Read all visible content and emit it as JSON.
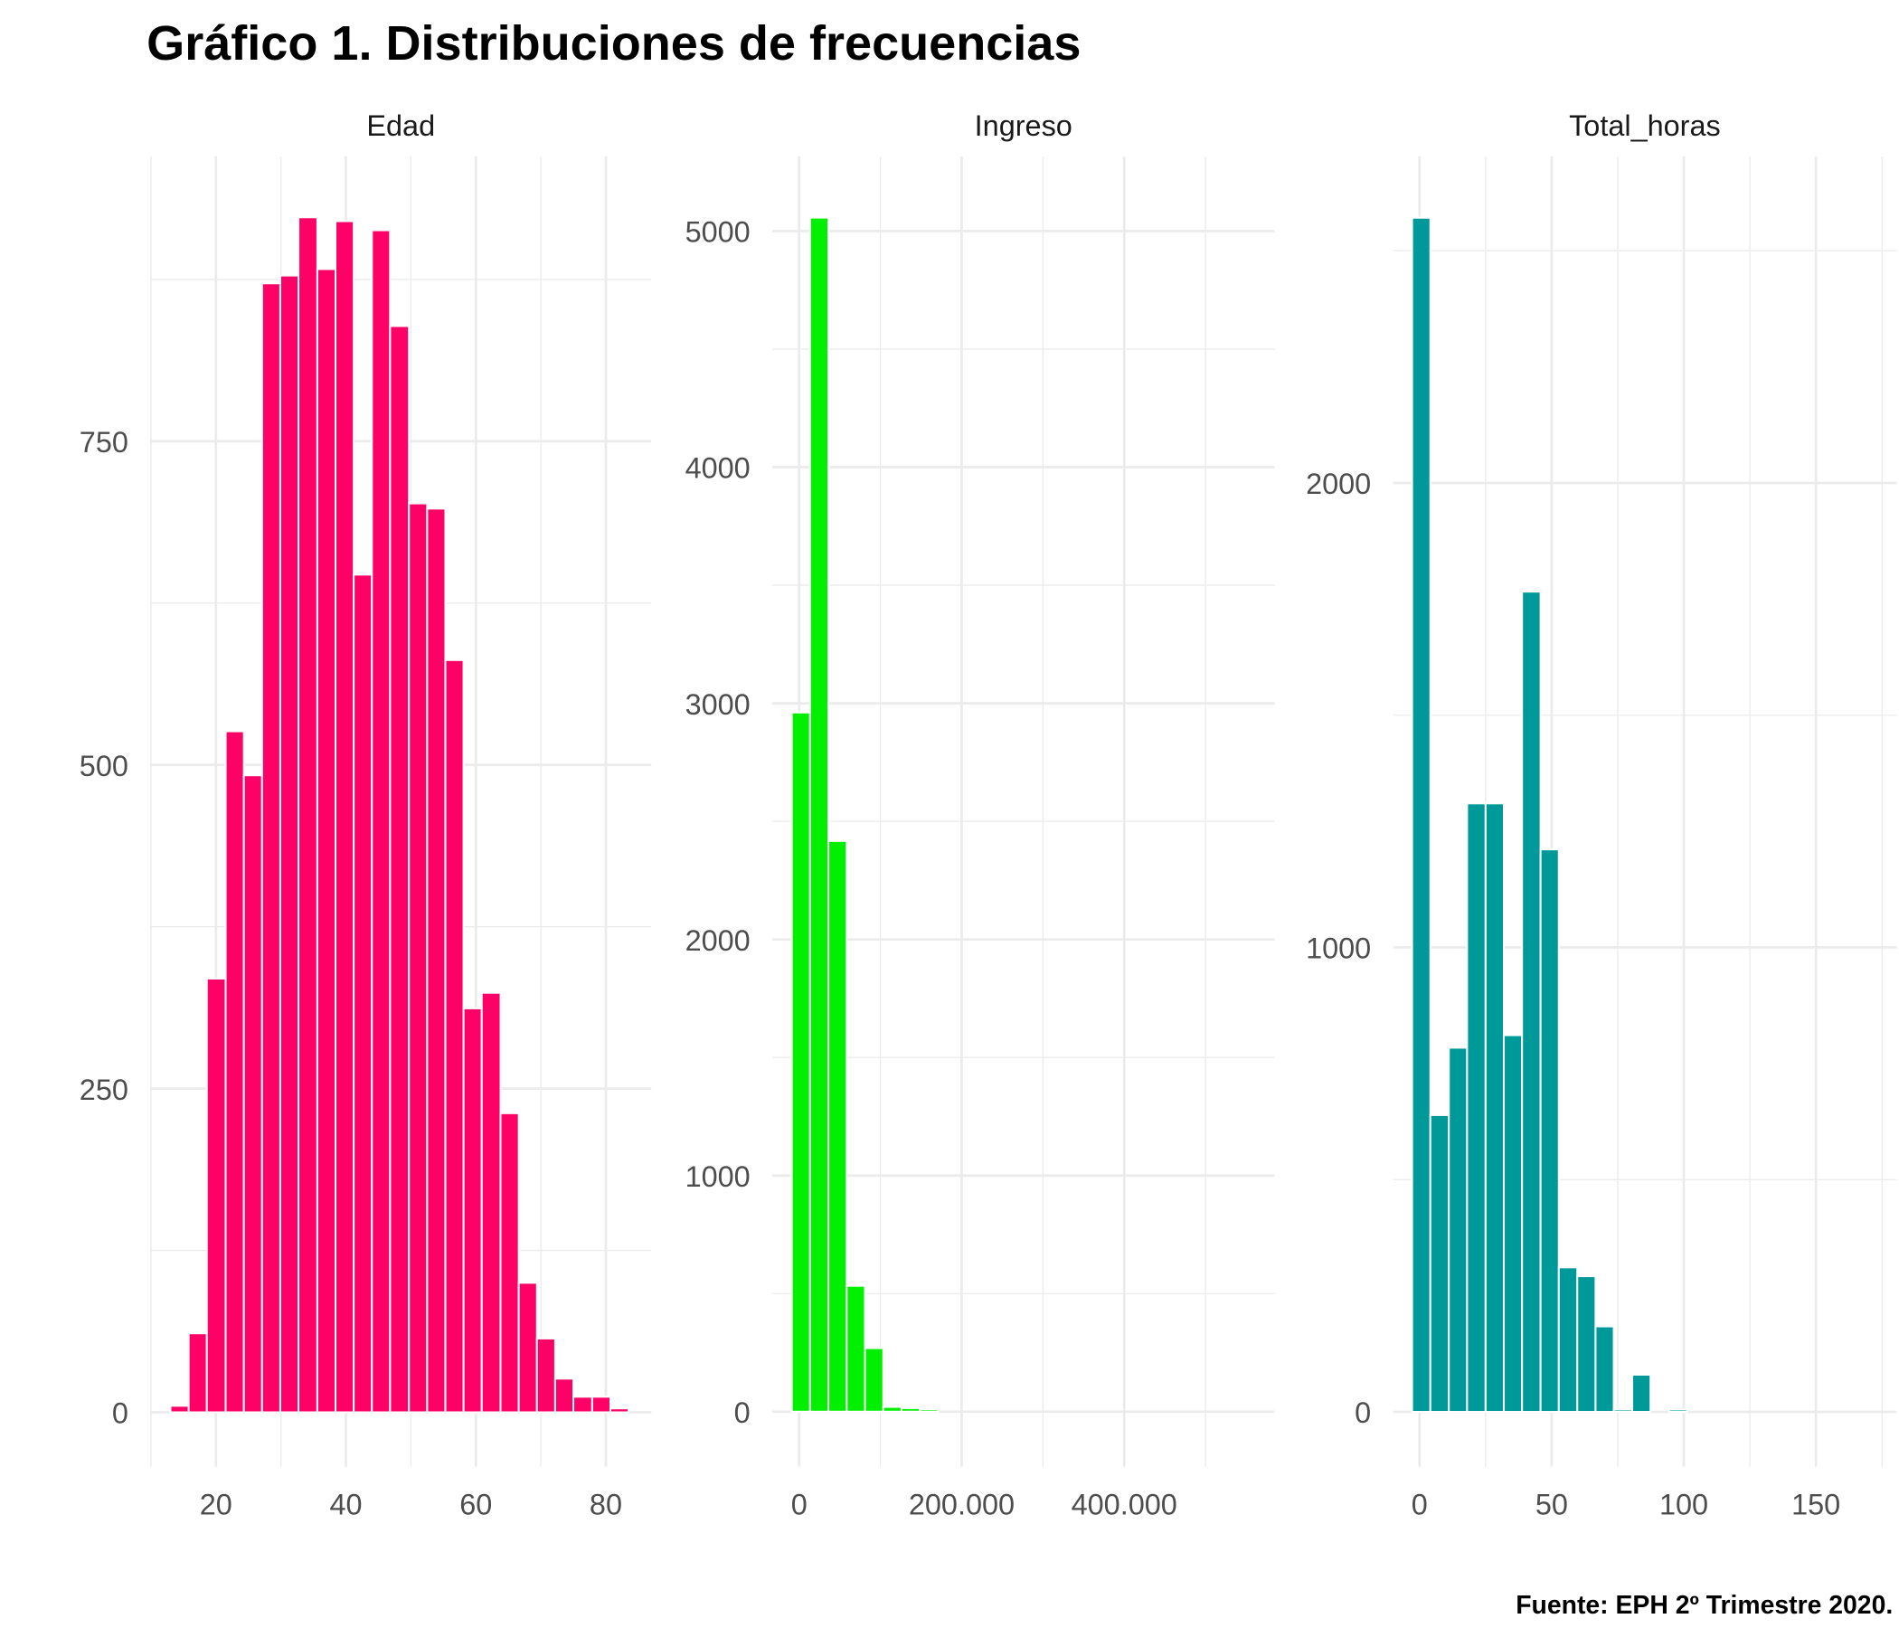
{
  "title": "Gráfico 1. Distribuciones de frecuencias",
  "caption": "Fuente: EPH 2º Trimestre 2020.",
  "chart_data": [
    {
      "type": "histogram",
      "title": "Edad",
      "color": "#ff0066",
      "bins": [
        13.0,
        15.8,
        18.6,
        21.5,
        24.3,
        27.1,
        29.9,
        32.7,
        35.6,
        38.4,
        41.2,
        44.0,
        46.8,
        49.7,
        52.5,
        55.3,
        58.1,
        60.9,
        63.8,
        66.6,
        69.4,
        72.2,
        75.0,
        77.9,
        80.7,
        83.5
      ],
      "values": [
        5,
        61,
        335,
        526,
        492,
        872,
        878,
        923,
        883,
        920,
        647,
        913,
        839,
        702,
        698,
        581,
        312,
        324,
        231,
        100,
        57,
        26,
        12,
        12,
        3
      ],
      "xlim": [
        9.9,
        87
      ],
      "ylim": [
        -42,
        970
      ],
      "xticks": [
        20,
        40,
        60,
        80
      ],
      "yticks": [
        0,
        250,
        500,
        750
      ],
      "xminor": [
        10,
        30,
        50,
        70
      ],
      "yminor": [
        125,
        375,
        625,
        875
      ],
      "grid": true
    },
    {
      "type": "histogram",
      "title": "Ingreso",
      "color": "#00f000",
      "bins": [
        -9000,
        13500,
        36000,
        58500,
        81000,
        103500,
        126000,
        148500,
        171000
      ],
      "values": [
        2961,
        5057,
        2417,
        533,
        269,
        20,
        15,
        10
      ],
      "xlim": [
        -33000,
        585000
      ],
      "ylim": [
        -233,
        5316
      ],
      "xticks": [
        0,
        {
          "value": 200000,
          "label": "200.000"
        },
        {
          "value": 400000,
          "label": "400.000"
        }
      ],
      "yticks": [
        0,
        1000,
        2000,
        3000,
        4000,
        5000
      ],
      "xminor": [
        100000,
        300000,
        500000
      ],
      "yminor": [
        500,
        1500,
        2500,
        3500,
        4500
      ],
      "grid": true
    },
    {
      "type": "histogram",
      "title": "Total_horas",
      "color": "#009999",
      "bins": [
        -2.8,
        4.1,
        11.1,
        18.0,
        25.0,
        31.9,
        38.8,
        45.8,
        52.7,
        59.7,
        66.6,
        73.5,
        80.5,
        87.4,
        94.4,
        101.3
      ],
      "values": [
        2571,
        639,
        784,
        1310,
        1310,
        811,
        1766,
        1211,
        311,
        292,
        184,
        5,
        80,
        0,
        5
      ],
      "xlim": [
        -10,
        180.5
      ],
      "ylim": [
        -118,
        2703
      ],
      "xticks": [
        0,
        50,
        100,
        150
      ],
      "yticks": [
        0,
        1000,
        2000
      ],
      "xminor": [
        25,
        75,
        125,
        175
      ],
      "yminor": [
        500,
        1500,
        2500
      ],
      "grid": true
    }
  ]
}
